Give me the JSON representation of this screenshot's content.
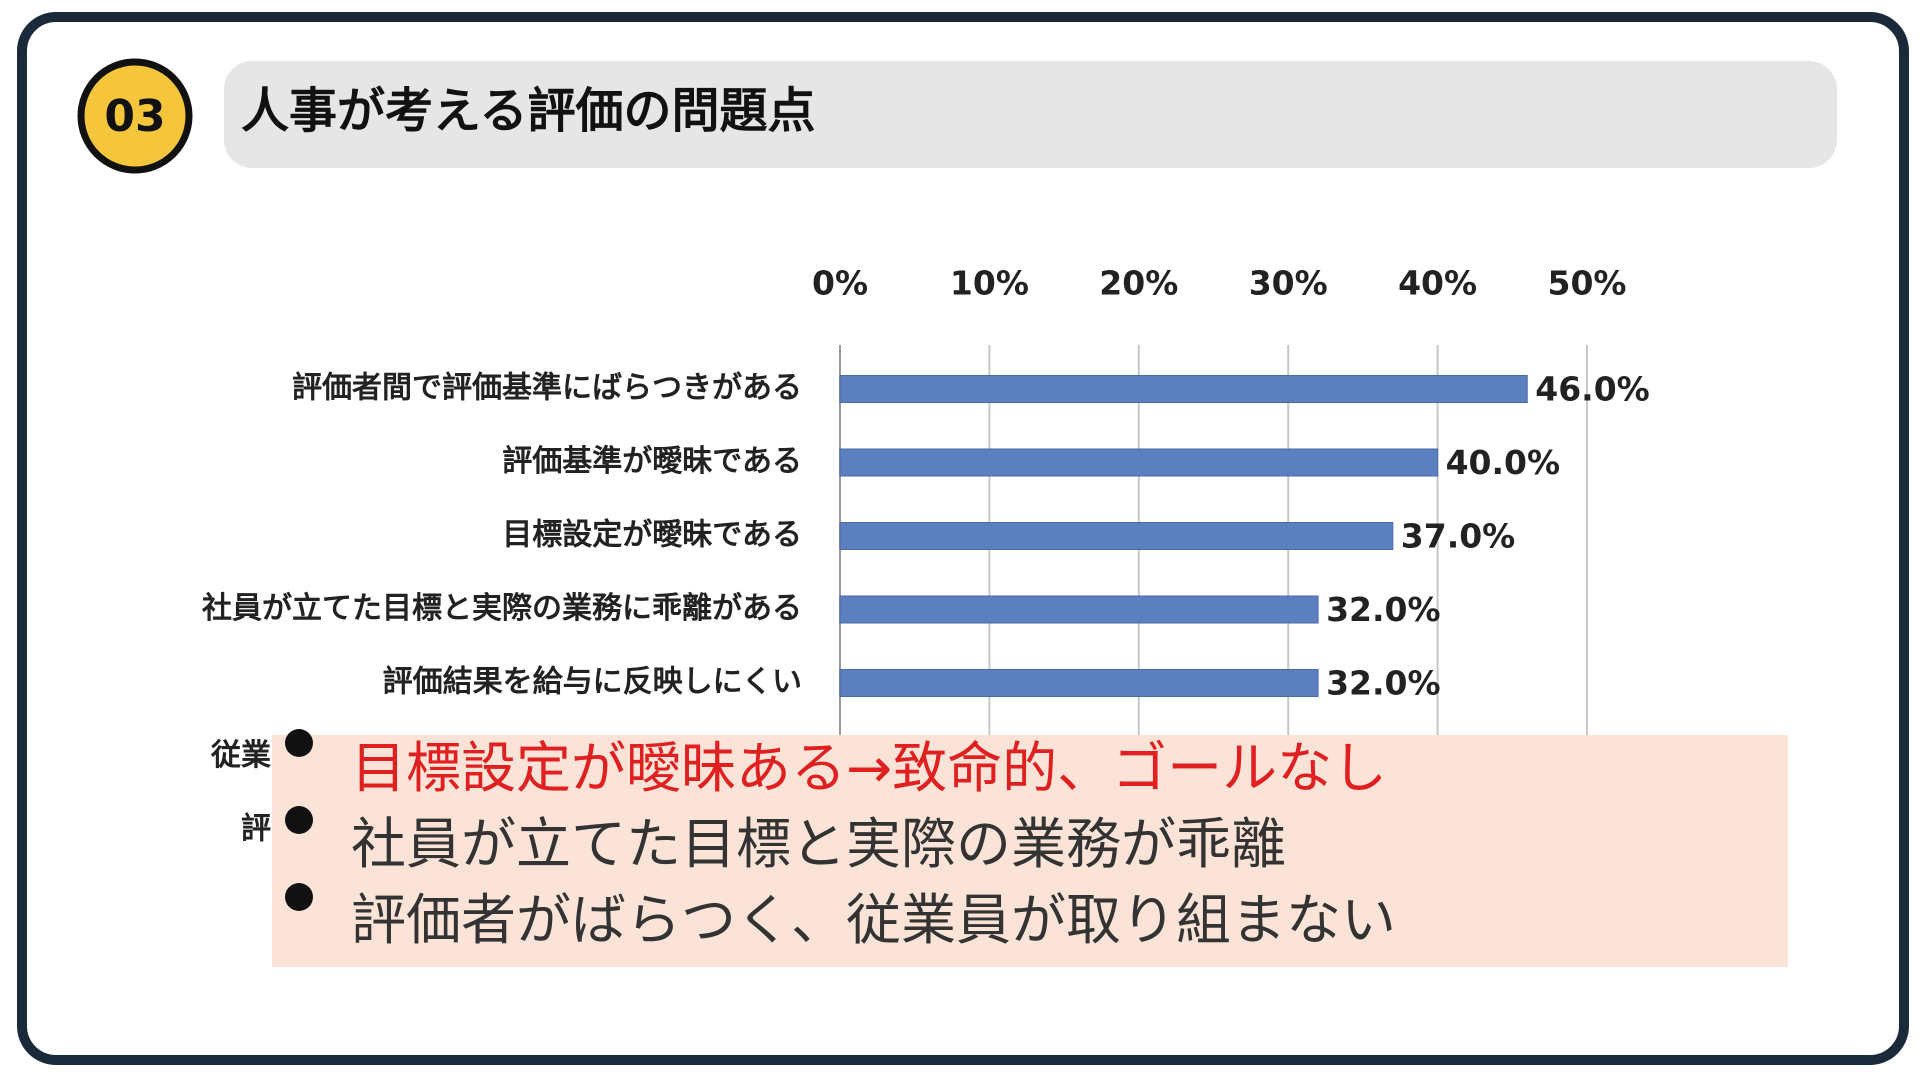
{
  "header": {
    "number": "03",
    "title": "人事が考える評価の問題点"
  },
  "chart_data": {
    "type": "bar",
    "orientation": "horizontal",
    "categories": [
      "評価者間で評価基準にばらつきがある",
      "評価基準が曖昧である",
      "目標設定が曖昧である",
      "社員が立てた目標と実際の業務に乖離がある",
      "評価結果を給与に反映しにくい",
      "従業",
      "評"
    ],
    "values": [
      46,
      40,
      37,
      32,
      32,
      null,
      null
    ],
    "value_labels": [
      "46.0%",
      "40.0%",
      "37.0%",
      "32.0%",
      "32.0%",
      null,
      null
    ],
    "color": "#5b7fbf",
    "xlim": [
      0,
      50
    ],
    "xticks": [
      {
        "value": 0,
        "label": "0%"
      },
      {
        "value": 10,
        "label": "10%"
      },
      {
        "value": 20,
        "label": "20%"
      },
      {
        "value": 30,
        "label": "30%"
      },
      {
        "value": 40,
        "label": "40%"
      },
      {
        "value": 50,
        "label": "50%"
      }
    ],
    "grid": true
  },
  "notes": [
    {
      "text": "目標設定が曖昧ある→致命的、ゴールなし",
      "color": "#e02020"
    },
    {
      "text": "社員が立てた目標と実際の業務が乖離",
      "color": "#333333"
    },
    {
      "text": "評価者がばらつく、従業員が取り組まない",
      "color": "#333333"
    }
  ]
}
